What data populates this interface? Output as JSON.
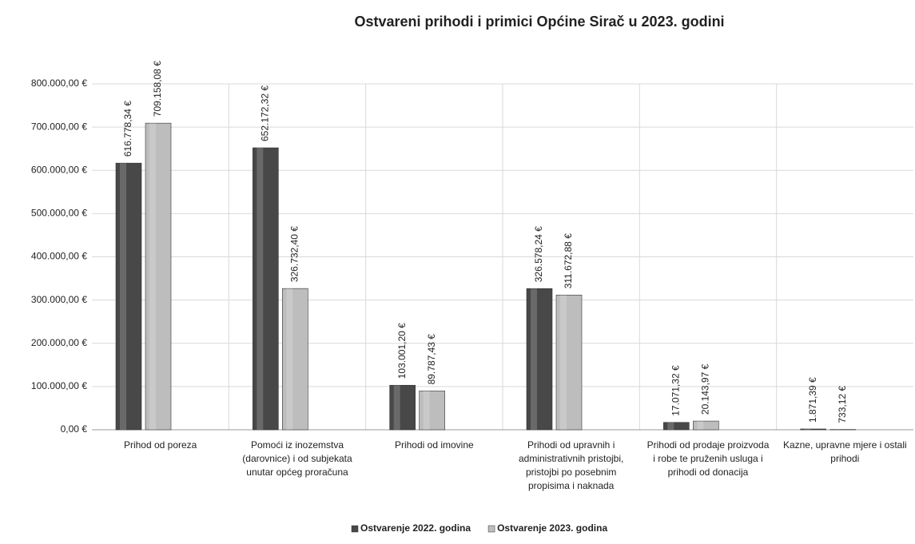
{
  "chart_data": {
    "type": "bar",
    "title": "Ostvareni prihodi i primici Općine Sirač u 2023. godini",
    "categories": [
      "Prihod od poreza",
      "Pomoći iz inozemstva (darovnice) i od subjekata unutar općeg proračuna",
      "Prihodi od imovine",
      "Prihodi od upravnih i administrativnih pristojbi, pristojbi po posebnim propisima i naknada",
      "Prihodi od prodaje proizvoda i robe te pruženih usluga i prihodi od donacija",
      "Kazne, upravne mjere i ostali prihodi"
    ],
    "series": [
      {
        "name": "Ostvarenje 2022. godina",
        "color": "#484848",
        "values": [
          616778.34,
          652172.32,
          103001.2,
          326578.24,
          17071.32,
          1871.39
        ],
        "value_labels": [
          "616.778,34 €",
          "652.172,32 €",
          "103.001,20 €",
          "326.578,24 €",
          "17.071,32 €",
          "1.871,39 €"
        ]
      },
      {
        "name": "Ostvarenje 2023. godina",
        "color": "#bdbdbd",
        "values": [
          709158.08,
          326732.4,
          89787.43,
          311672.88,
          20143.97,
          733.12
        ],
        "value_labels": [
          "709.158,08 €",
          "326.732,40 €",
          "89.787,43 €",
          "311.672,88 €",
          "20.143,97 €",
          "733,12 €"
        ]
      }
    ],
    "ylim": [
      0,
      800000
    ],
    "yticks": [
      {
        "value": 0,
        "label": "0,00 €"
      },
      {
        "value": 100000,
        "label": "100.000,00 €"
      },
      {
        "value": 200000,
        "label": "200.000,00 €"
      },
      {
        "value": 300000,
        "label": "300.000,00 €"
      },
      {
        "value": 400000,
        "label": "400.000,00 €"
      },
      {
        "value": 500000,
        "label": "500.000,00 €"
      },
      {
        "value": 600000,
        "label": "600.000,00 €"
      },
      {
        "value": 700000,
        "label": "700.000,00 €"
      },
      {
        "value": 800000,
        "label": "800.000,00 €"
      }
    ],
    "grid": true,
    "legend": "bottom"
  }
}
